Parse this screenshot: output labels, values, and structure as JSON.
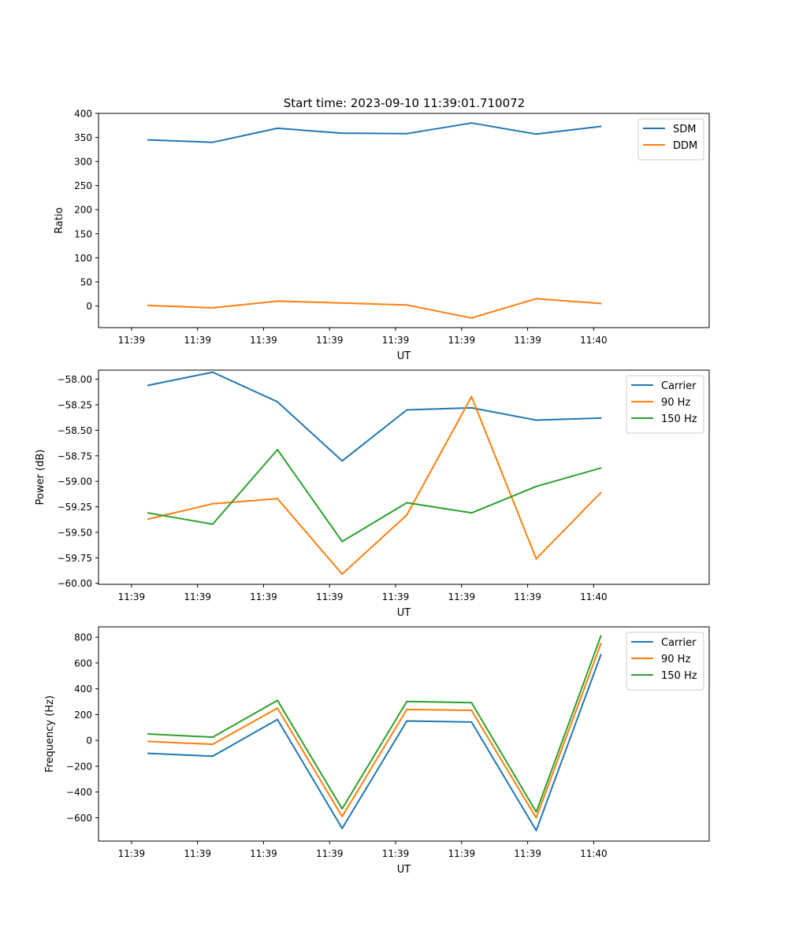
{
  "figure_title": "Start time: 2023-09-10 11:39:01.710072",
  "colors": {
    "c0": "#1f77b4",
    "c1": "#ff7f0e",
    "c2": "#2ca02c"
  },
  "chart_data": [
    {
      "type": "line",
      "title": "Start time: 2023-09-10 11:39:01.710072",
      "xlabel": "UT",
      "ylabel": "Ratio",
      "x_ticks": [
        "11:39",
        "11:39",
        "11:39",
        "11:39",
        "11:39",
        "11:39",
        "11:39",
        "11:40"
      ],
      "xlim": [
        -0.5,
        8.75
      ],
      "ylim": [
        -45,
        400
      ],
      "y_ticks": [
        0,
        50,
        100,
        150,
        200,
        250,
        300,
        350,
        400
      ],
      "y_tick_labels": [
        "0",
        "50",
        "100",
        "150",
        "200",
        "250",
        "300",
        "350",
        "400"
      ],
      "x": [
        0.25,
        1.23,
        2.21,
        3.19,
        4.17,
        5.15,
        6.13,
        7.11
      ],
      "legend": "top-right",
      "series": [
        {
          "name": "SDM",
          "color": "#1f77b4",
          "values": [
            345,
            340,
            369,
            359,
            358,
            380,
            357,
            373
          ]
        },
        {
          "name": "DDM",
          "color": "#ff7f0e",
          "values": [
            1,
            -4,
            10,
            6,
            2,
            -25,
            15,
            5
          ]
        }
      ]
    },
    {
      "type": "line",
      "title": "",
      "xlabel": "UT",
      "ylabel": "Power (dB)",
      "x_ticks": [
        "11:39",
        "11:39",
        "11:39",
        "11:39",
        "11:39",
        "11:39",
        "11:39",
        "11:40"
      ],
      "xlim": [
        -0.5,
        8.75
      ],
      "ylim": [
        -60.01,
        -57.91
      ],
      "y_ticks": [
        -58.0,
        -58.25,
        -58.5,
        -58.75,
        -59.0,
        -59.25,
        -59.5,
        -59.75,
        -60.0
      ],
      "y_tick_labels": [
        "−58.00",
        "−58.25",
        "−58.50",
        "−58.75",
        "−59.00",
        "−59.25",
        "−59.50",
        "−59.75",
        "−60.00"
      ],
      "x": [
        0.25,
        1.23,
        2.21,
        3.19,
        4.17,
        5.15,
        6.13,
        7.11
      ],
      "legend": "top-right",
      "series": [
        {
          "name": "Carrier",
          "color": "#1f77b4",
          "values": [
            -58.06,
            -57.93,
            -58.22,
            -58.8,
            -58.3,
            -58.28,
            -58.4,
            -58.38
          ]
        },
        {
          "name": "90 Hz",
          "color": "#ff7f0e",
          "values": [
            -59.37,
            -59.22,
            -59.17,
            -59.91,
            -59.33,
            -58.17,
            -59.76,
            -59.11
          ]
        },
        {
          "name": "150 Hz",
          "color": "#2ca02c",
          "values": [
            -59.31,
            -59.42,
            -58.69,
            -59.59,
            -59.21,
            -59.31,
            -59.05,
            -58.87
          ]
        }
      ]
    },
    {
      "type": "line",
      "title": "",
      "xlabel": "UT",
      "ylabel": "Frequency (Hz)",
      "x_ticks": [
        "11:39",
        "11:39",
        "11:39",
        "11:39",
        "11:39",
        "11:39",
        "11:39",
        "11:40"
      ],
      "xlim": [
        -0.5,
        8.75
      ],
      "ylim": [
        -780,
        880
      ],
      "y_ticks": [
        800,
        600,
        400,
        200,
        0,
        -200,
        -400,
        -600
      ],
      "y_tick_labels": [
        "800",
        "600",
        "400",
        "200",
        "0",
        "−200",
        "−400",
        "−600"
      ],
      "x": [
        0.25,
        1.23,
        2.21,
        3.19,
        4.17,
        5.15,
        6.13,
        7.11
      ],
      "legend": "top-right",
      "series": [
        {
          "name": "Carrier",
          "color": "#1f77b4",
          "values": [
            -100,
            -123,
            162,
            -682,
            151,
            142,
            -698,
            665
          ]
        },
        {
          "name": "90 Hz",
          "color": "#ff7f0e",
          "values": [
            -8,
            -30,
            250,
            -590,
            240,
            233,
            -600,
            750
          ]
        },
        {
          "name": "150 Hz",
          "color": "#2ca02c",
          "values": [
            50,
            25,
            310,
            -530,
            302,
            292,
            -555,
            810
          ]
        }
      ]
    }
  ]
}
